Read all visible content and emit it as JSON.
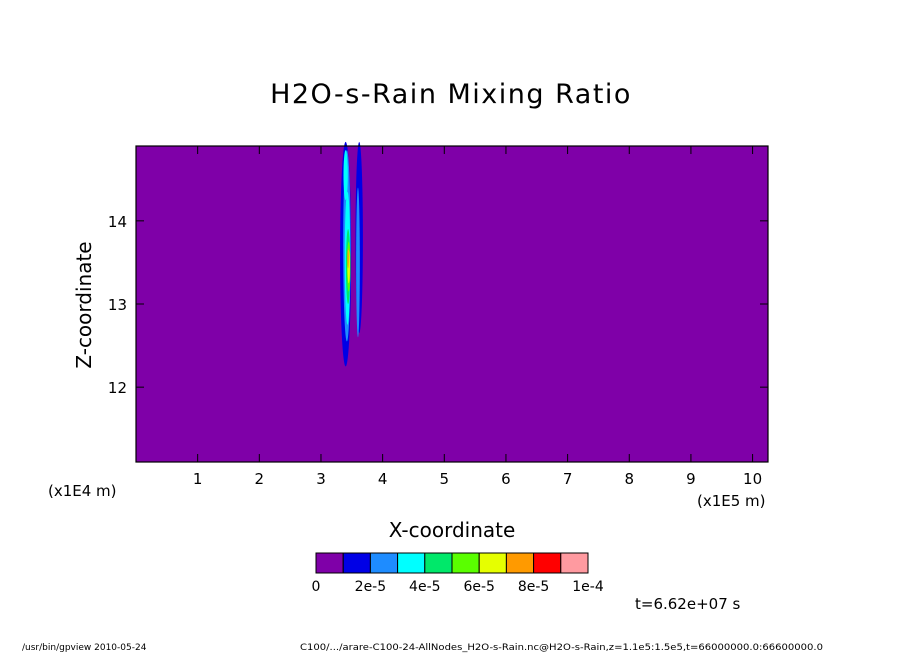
{
  "chart_data": {
    "type": "heatmap",
    "title": "H2O-s-Rain Mixing Ratio",
    "xlabel": "X-coordinate",
    "ylabel": "Z-coordinate",
    "x_unit_label": "(x1E5 m)",
    "y_unit_label": "(x1E4 m)",
    "xlim": [
      0,
      10.25
    ],
    "ylim": [
      11.1,
      14.9
    ],
    "x_ticks": [
      "1",
      "2",
      "3",
      "4",
      "5",
      "6",
      "7",
      "8",
      "9",
      "10"
    ],
    "y_ticks": [
      "12",
      "13",
      "14"
    ],
    "background_color": "#7f00a8",
    "colorbar": {
      "levels": [
        "0",
        "2e-5",
        "4e-5",
        "6e-5",
        "8e-5",
        "1e-4"
      ],
      "colors": [
        "#7f00a8",
        "#0000e6",
        "#1e8cff",
        "#00ffff",
        "#00e86a",
        "#5aff00",
        "#e6ff00",
        "#ff9a00",
        "#ff0000",
        "#ff9aa0"
      ]
    },
    "features": [
      {
        "x": 3.42,
        "z": 14.4,
        "level": 2
      },
      {
        "x": 3.45,
        "z": 13.5,
        "level": 3
      },
      {
        "x": 3.45,
        "z": 13.4,
        "level": 6
      },
      {
        "x": 3.44,
        "z": 13.5,
        "level": 7
      },
      {
        "x": 3.62,
        "z": 13.6,
        "level": 1
      }
    ]
  },
  "time_label": "t=6.62e+07 s",
  "footer": {
    "left": "/usr/bin/gpview  2010-05-24",
    "right": "C100/.../arare-C100-24-AllNodes_H2O-s-Rain.nc@H2O-s-Rain,z=1.1e5:1.5e5,t=66000000.0:66600000.0"
  }
}
